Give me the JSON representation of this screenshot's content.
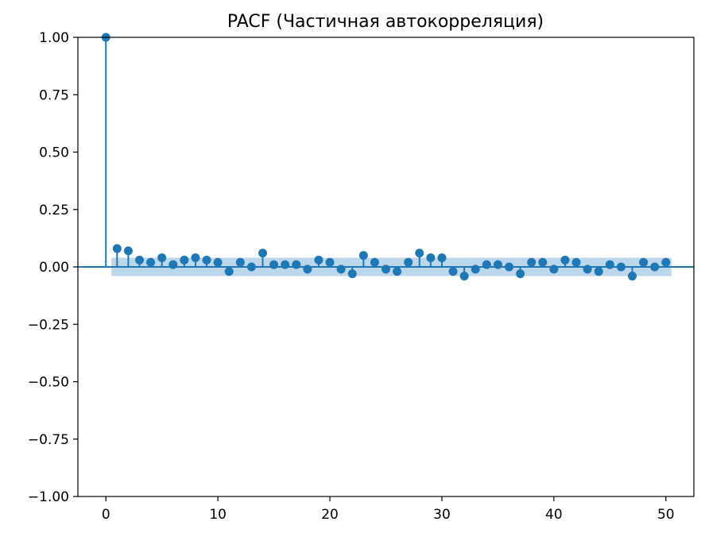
{
  "chart_data": {
    "type": "stem",
    "title": "PACF (Частичная автокорреляция)",
    "xlabel": "",
    "ylabel": "",
    "xlim": [
      -2.5,
      52.5
    ],
    "ylim": [
      -1.0,
      1.0
    ],
    "x_ticks": [
      0,
      10,
      20,
      30,
      40,
      50
    ],
    "x_tick_labels": [
      "0",
      "10",
      "20",
      "30",
      "40",
      "50"
    ],
    "y_ticks": [
      1.0,
      0.75,
      0.5,
      0.25,
      0.0,
      -0.25,
      -0.5,
      -0.75,
      -1.0
    ],
    "y_tick_labels": [
      "1.00",
      "0.75",
      "0.50",
      "0.25",
      "0.00",
      "−0.25",
      "−0.50",
      "−0.75",
      "−1.00"
    ],
    "grid": false,
    "confidence_band": {
      "x_from": 0.5,
      "x_to": 50.5,
      "lower": -0.04,
      "upper": 0.04
    },
    "lags": [
      0,
      1,
      2,
      3,
      4,
      5,
      6,
      7,
      8,
      9,
      10,
      11,
      12,
      13,
      14,
      15,
      16,
      17,
      18,
      19,
      20,
      21,
      22,
      23,
      24,
      25,
      26,
      27,
      28,
      29,
      30,
      31,
      32,
      33,
      34,
      35,
      36,
      37,
      38,
      39,
      40,
      41,
      42,
      43,
      44,
      45,
      46,
      47,
      48,
      49,
      50
    ],
    "values": [
      1.0,
      0.08,
      0.07,
      0.03,
      0.02,
      0.04,
      0.01,
      0.03,
      0.04,
      0.03,
      0.02,
      -0.02,
      0.02,
      0.0,
      0.06,
      0.01,
      0.01,
      0.01,
      -0.01,
      0.03,
      0.02,
      -0.01,
      -0.03,
      0.05,
      0.02,
      -0.01,
      -0.02,
      0.02,
      0.06,
      0.04,
      0.04,
      -0.02,
      -0.04,
      -0.01,
      0.01,
      0.01,
      0.0,
      -0.03,
      0.02,
      0.02,
      -0.01,
      0.03,
      0.02,
      -0.01,
      -0.02,
      0.01,
      0.0,
      -0.04,
      0.02,
      0.0,
      0.02
    ],
    "colors": {
      "stem": "#1f77b4",
      "band": "#a6c8e6",
      "axes": "#000000"
    }
  }
}
